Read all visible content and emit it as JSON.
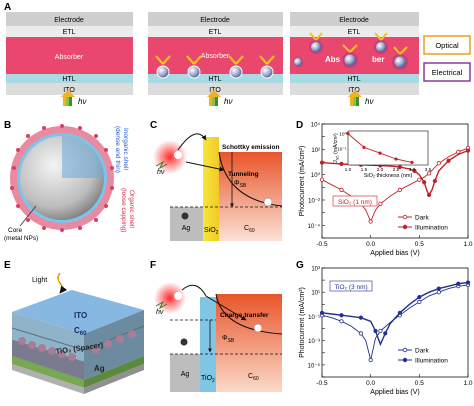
{
  "panels": {
    "A": {
      "label": "A",
      "layers": [
        "Electrode",
        "ETL",
        "Absorber",
        "HTL",
        "ITO"
      ],
      "absorber_partial": [
        "Abs",
        "ber"
      ],
      "light": "hν",
      "legend": [
        "Optical",
        "Electrical"
      ]
    },
    "B": {
      "label": "B",
      "inorganic_shell": "Inorganic shell",
      "inorganic_detail": "(dense and thin)",
      "organic_shell": "Organic shell",
      "organic_detail": "(loose capping)",
      "core": "Core",
      "core_detail": "(metal NPs)"
    },
    "C": {
      "label": "C",
      "light": "hν",
      "schottky": "Schottky emission",
      "tunneling": "Tunneling",
      "phi": "Φ",
      "phi_sub": "SB",
      "ag": "Ag",
      "sio2": "SiO",
      "sio2_sub": "2",
      "c60": "C",
      "c60_sub": "60"
    },
    "D": {
      "label": "D",
      "ylabel": "Photocurrent (mA/cm²)",
      "xlabel": "Applied bias (V)",
      "yticks": [
        "10⁻⁴",
        "10⁻²",
        "10⁰",
        "10²",
        "10⁴"
      ],
      "xticks": [
        "-0.5",
        "0.0",
        "0.5",
        "1.0"
      ],
      "sample": "SiO₂ (1 nm)",
      "legend": [
        "Dark",
        "Illumination"
      ],
      "inset": {
        "ylabel": "J",
        "ylabel_sub": "SC",
        "ylabel_unit": " (mA/cm²)",
        "xlabel": "SiO₂ thickness (nm)",
        "yticks": [
          "10⁰",
          "10⁻¹"
        ],
        "xticks": [
          "1.0",
          "1.5",
          "2.0",
          "2.5",
          "3.0",
          "3.5"
        ]
      }
    },
    "E": {
      "label": "E",
      "light": "Light",
      "ito": "ITO",
      "c60": "C",
      "c60_sub": "60",
      "tio2": "TiO₂ (Spacer)",
      "ag": "Ag"
    },
    "F": {
      "label": "F",
      "light": "hν",
      "transfer": "Charge transfer",
      "phi": "Φ",
      "phi_sub": "SB",
      "ag": "Ag",
      "tio2": "TiO",
      "tio2_sub": "2",
      "c60": "C",
      "c60_sub": "60"
    },
    "G": {
      "label": "G",
      "ylabel": "Photocurrent (mA/cm²)",
      "xlabel": "Applied bias (V)",
      "yticks": [
        "10⁻⁵",
        "10⁻³",
        "10⁻¹",
        "10¹",
        "10³"
      ],
      "xticks": [
        "-0.5",
        "0.0",
        "0.5",
        "1.0"
      ],
      "sample": "TiO₂ (3 nm)",
      "legend": [
        "Dark",
        "Illumination"
      ]
    }
  },
  "colors": {
    "absorber": "#e9476d",
    "etl": "#e9e9e9",
    "htl": "#a9d9e3",
    "ito": "#dcdcdc",
    "sio2": "#f1e43a",
    "c60_gradient_top": "#e8552a",
    "dark_series": "#c0202a",
    "illum_series": "#c0202a",
    "g_series": "#23308f",
    "optical": "#e8a020",
    "electrical": "#8a3b9a"
  },
  "chart_data": [
    {
      "panel": "D",
      "type": "line",
      "xlabel": "Applied bias (V)",
      "ylabel": "Photocurrent (mA/cm²)",
      "xlim": [
        -0.5,
        1.0
      ],
      "ylim_log10": [
        -5,
        4
      ],
      "yscale": "log",
      "series": [
        {
          "name": "Dark",
          "x": [
            -0.5,
            -0.4,
            -0.3,
            -0.2,
            -0.1,
            -0.05,
            0.0,
            0.05,
            0.1,
            0.2,
            0.3,
            0.4,
            0.5,
            0.55,
            0.6,
            0.65,
            0.7,
            0.8,
            0.9,
            1.0
          ],
          "y_log10": [
            -0.4,
            -0.8,
            -1.2,
            -1.7,
            -2.3,
            -2.8,
            -3.7,
            -2.8,
            -2.3,
            -1.7,
            -1.2,
            -0.8,
            -0.4,
            -0.2,
            0.1,
            0.5,
            0.9,
            1.4,
            1.8,
            2.1
          ]
        },
        {
          "name": "Illumination",
          "x": [
            -0.5,
            -0.4,
            -0.3,
            -0.2,
            -0.1,
            0.0,
            0.1,
            0.2,
            0.3,
            0.4,
            0.45,
            0.5,
            0.55,
            0.58,
            0.6,
            0.63,
            0.66,
            0.7,
            0.8,
            0.9,
            1.0
          ],
          "y_log10": [
            0.95,
            0.9,
            0.85,
            0.8,
            0.78,
            0.75,
            0.72,
            0.68,
            0.6,
            0.45,
            0.3,
            0.0,
            -0.6,
            -1.3,
            -1.6,
            -1.2,
            -0.5,
            0.3,
            1.1,
            1.6,
            1.9
          ]
        }
      ]
    },
    {
      "panel": "D-inset",
      "type": "line",
      "xlabel": "SiO₂ thickness (nm)",
      "xlim": [
        1.0,
        3.5
      ],
      "yscale": "log",
      "series": [
        {
          "x": [
            1.0,
            1.5,
            2.0,
            2.5,
            3.0
          ],
          "y": [
            0.1,
            0.012,
            0.005,
            0.002,
            0.0012
          ]
        }
      ]
    },
    {
      "panel": "G",
      "type": "line",
      "xlabel": "Applied bias (V)",
      "ylabel": "Photocurrent (mA/cm²)",
      "xlim": [
        -0.5,
        1.0
      ],
      "ylim_log10": [
        -5,
        4
      ],
      "yscale": "log",
      "series": [
        {
          "name": "Dark",
          "x": [
            -0.5,
            -0.4,
            -0.3,
            -0.2,
            -0.1,
            -0.05,
            0.0,
            0.05,
            0.1,
            0.2,
            0.3,
            0.4,
            0.5,
            0.6,
            0.7,
            0.8,
            0.9,
            1.0
          ],
          "y_log10": [
            0.1,
            -0.1,
            -0.4,
            -0.8,
            -1.4,
            -2.0,
            -3.6,
            -1.8,
            -1.2,
            -0.5,
            0.1,
            0.7,
            1.2,
            1.7,
            2.0,
            2.3,
            2.5,
            2.6
          ]
        },
        {
          "name": "Illumination",
          "x": [
            -0.5,
            -0.4,
            -0.3,
            -0.2,
            -0.1,
            0.0,
            0.05,
            0.1,
            0.15,
            0.2,
            0.3,
            0.4,
            0.5,
            0.6,
            0.7,
            0.8,
            0.9,
            1.0
          ],
          "y_log10": [
            0.3,
            0.2,
            0.1,
            0.0,
            -0.1,
            -0.4,
            -1.2,
            -2.3,
            -1.4,
            -0.6,
            0.3,
            1.0,
            1.6,
            2.0,
            2.3,
            2.5,
            2.7,
            2.8
          ]
        }
      ]
    }
  ]
}
